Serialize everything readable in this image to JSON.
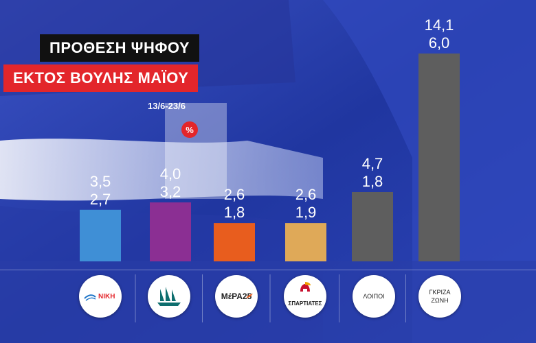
{
  "header": {
    "title": "ΠΡΟΘΕΣΗ ΨΗΦΟΥ",
    "subtitle": "ΕΚΤΟΣ ΒΟΥΛΗΣ ΜΑΪΟΥ",
    "date_range": "13/6-23/6",
    "unit_badge": "%"
  },
  "chart_data": {
    "type": "bar",
    "categories": [
      "ΝΙΚΗ",
      "ΠΛΕΥΣΗ ΕΛΕΥΘΕΡΙΑΣ",
      "ΜέΡΑ25",
      "ΣΠΑΡΤΙΑΤΕΣ",
      "ΛΟΙΠΟΙ",
      "ΓΚΡΙΖΑ ΖΩΝΗ"
    ],
    "series": [
      {
        "values": [
          3.5,
          4.0,
          2.6,
          2.6,
          4.7,
          14.1
        ]
      },
      {
        "values": [
          2.7,
          3.2,
          1.8,
          1.9,
          1.8,
          6.0
        ]
      }
    ],
    "labels_top": [
      "3,5",
      "4,0",
      "2,6",
      "2,6",
      "4,7",
      "14,1"
    ],
    "labels_bottom": [
      "2,7",
      "3,2",
      "1,8",
      "1,9",
      "1,8",
      "6,0"
    ],
    "bar_series_index": 0,
    "bar_colors": [
      "#3f8fd6",
      "#8b2f93",
      "#e85d1e",
      "#dfa958",
      "#5e5e5e",
      "#5e5e5e"
    ],
    "ylim": [
      0,
      14.1
    ]
  },
  "footer": {
    "niki_logo": "ΝΙΚΗ",
    "mera_logo": "ΜέΡΑ25",
    "spartiates_logo": "ΣΠΑΡΤΙΑΤΕΣ",
    "loipoi": "ΛΟΙΠΟΙ",
    "gkriza_line1": "ΓΚΡΙΖΑ",
    "gkriza_line2": "ΖΩΝΗ"
  },
  "colors": {
    "background": "#2a3ea8",
    "title_box": "#111111",
    "subtitle_box": "#e3262b"
  }
}
